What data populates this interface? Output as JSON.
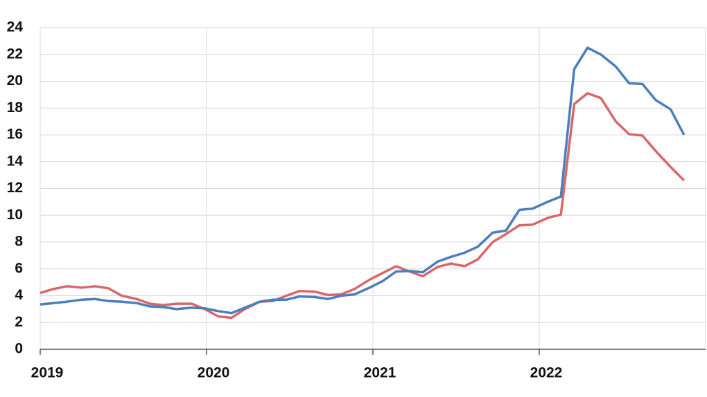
{
  "chart_data": {
    "type": "line",
    "x": [
      2019,
      2019.08,
      2019.16,
      2019.25,
      2019.33,
      2019.41,
      2019.49,
      2019.58,
      2019.66,
      2019.74,
      2019.82,
      2019.91,
      2019.99,
      2020.07,
      2020.15,
      2020.23,
      2020.32,
      2020.4,
      2020.48,
      2020.56,
      2020.65,
      2020.73,
      2020.81,
      2020.89,
      2020.98,
      2021.06,
      2021.14,
      2021.22,
      2021.3,
      2021.39,
      2021.47,
      2021.55,
      2021.63,
      2021.72,
      2021.8,
      2021.88,
      2021.96,
      2022.05,
      2022.13,
      2022.21,
      2022.29,
      2022.37,
      2022.46,
      2022.54,
      2022.62,
      2022.7,
      2022.79,
      2022.87
    ],
    "series": [
      {
        "color": "#d9676a",
        "values": [
          4.2,
          4.5,
          4.7,
          4.6,
          4.7,
          4.55,
          4.0,
          3.75,
          3.4,
          3.3,
          3.4,
          3.4,
          3.0,
          2.45,
          2.35,
          3.0,
          3.55,
          3.6,
          4.0,
          4.35,
          4.3,
          4.05,
          4.1,
          4.5,
          5.2,
          5.7,
          6.2,
          5.8,
          5.45,
          6.15,
          6.4,
          6.2,
          6.7,
          8.0,
          8.6,
          9.25,
          9.3,
          9.8,
          10.05,
          18.3,
          19.1,
          18.75,
          17.0,
          16.05,
          15.95,
          14.8,
          13.6,
          12.6
        ]
      },
      {
        "color": "#4b7fbc",
        "values": [
          3.35,
          3.45,
          3.55,
          3.7,
          3.75,
          3.6,
          3.55,
          3.45,
          3.2,
          3.15,
          3.0,
          3.1,
          3.05,
          2.85,
          2.7,
          3.1,
          3.55,
          3.7,
          3.7,
          3.95,
          3.9,
          3.75,
          4.0,
          4.1,
          4.6,
          5.1,
          5.8,
          5.85,
          5.75,
          6.55,
          6.9,
          7.2,
          7.65,
          8.7,
          8.85,
          10.4,
          10.5,
          11.0,
          11.4,
          20.9,
          22.5,
          22.0,
          21.1,
          19.85,
          19.8,
          18.6,
          17.9,
          16.0
        ]
      }
    ],
    "xlim": [
      2019,
      2023
    ],
    "xticks": [
      2019,
      2020,
      2021,
      2022
    ],
    "ylim": [
      0,
      24
    ],
    "yticks": [
      0,
      2,
      4,
      6,
      8,
      10,
      12,
      14,
      16,
      18,
      20,
      22,
      24
    ],
    "grid": true
  }
}
